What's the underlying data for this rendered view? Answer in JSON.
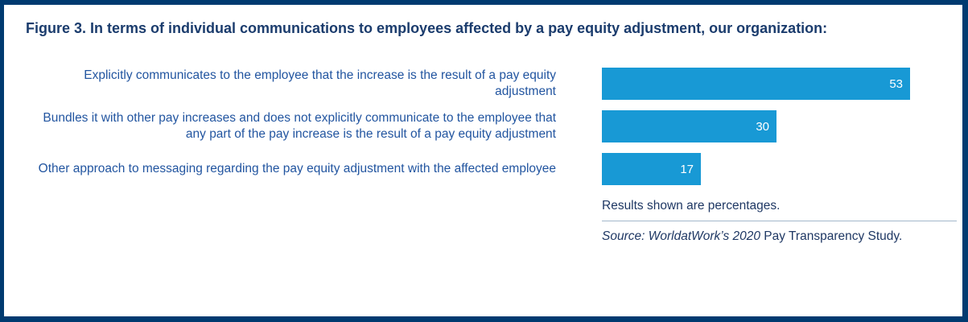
{
  "chart_data": {
    "type": "bar",
    "orientation": "horizontal",
    "title": "Figure 3. In terms of individual communications to employees affected by a pay equity adjustment, our organization:",
    "categories": [
      "Explicitly communicates to the employee that the increase is the result of a pay equity adjustment",
      "Bundles it with other pay increases and does not explicitly communicate to the employee that any part of the pay increase is the result of a pay equity adjustment",
      "Other approach to messaging regarding the pay equity adjustment with the affected employee"
    ],
    "values": [
      53,
      30,
      17
    ],
    "value_labels": [
      "53",
      "30",
      "17"
    ],
    "value_unit": "percent",
    "xlim": [
      0,
      61
    ],
    "xlabel": "",
    "ylabel": "",
    "grid": false,
    "legend_position": "none",
    "notes": "Results shown are percentages.",
    "source_italic": "Source: WorldatWork’s 2020",
    "source_regular": " Pay Transparency Study."
  },
  "colors": {
    "frame_border": "#003a70",
    "title_text": "#1b3c6d",
    "category_text": "#2255a0",
    "bar_fill": "#1899d5",
    "bar_value_text": "#ffffff",
    "footer_text": "#1f3864",
    "divider": "#a3b8cc"
  }
}
